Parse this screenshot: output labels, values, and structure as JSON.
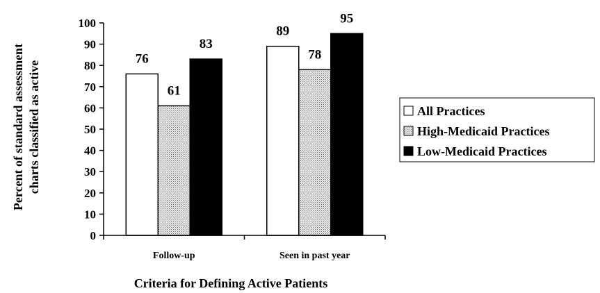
{
  "chart_data": {
    "type": "bar",
    "title": "",
    "xlabel": "Criteria for Defining Active Patients",
    "ylabel_lines": [
      "Percent of standard assessment",
      "charts classified as active"
    ],
    "ylim": [
      0,
      100
    ],
    "yticks": [
      0,
      10,
      20,
      30,
      40,
      50,
      60,
      70,
      80,
      90,
      100
    ],
    "categories": [
      "Follow-up",
      "Seen in past year"
    ],
    "series": [
      {
        "name": "All Practices",
        "values": [
          76,
          89
        ],
        "fill": "#ffffff"
      },
      {
        "name": "High-Medicaid Practices",
        "values": [
          61,
          78
        ],
        "fill": "#c8c8c8"
      },
      {
        "name": "Low-Medicaid Practices",
        "values": [
          83,
          95
        ],
        "fill": "#000000"
      }
    ],
    "data_labels": [
      [
        "76",
        "89"
      ],
      [
        "61",
        "78"
      ],
      [
        "83",
        "95"
      ]
    ],
    "legend_position": "right",
    "grid": false
  }
}
